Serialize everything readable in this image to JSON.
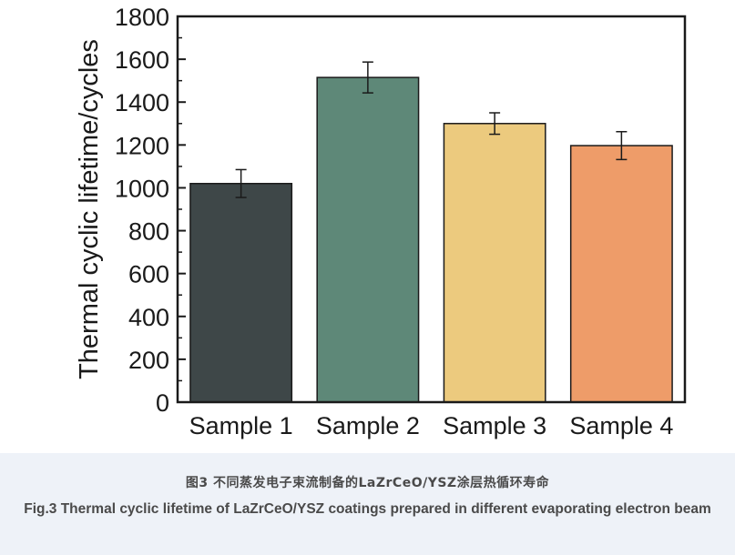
{
  "chart_data": {
    "type": "bar",
    "categories": [
      "Sample 1",
      "Sample 2",
      "Sample 3",
      "Sample 4"
    ],
    "values": [
      1020,
      1515,
      1300,
      1197
    ],
    "errors": [
      65,
      72,
      50,
      65
    ],
    "colors": [
      "#3e4748",
      "#5e8878",
      "#ecca7e",
      "#ee9c69"
    ],
    "ylabel": "Thermal cyclic lifetime/cycles",
    "ylim": [
      0,
      1800
    ],
    "yticks": [
      0,
      200,
      400,
      600,
      800,
      1000,
      1200,
      1400,
      1600,
      1800
    ],
    "grid": false
  },
  "caption": {
    "cn": "图3 不同蒸发电子束流制备的LaZrCeO/YSZ涂层热循环寿命",
    "en": "Fig.3 Thermal cyclic lifetime of LaZrCeO/YSZ coatings prepared in different evaporating electron beam"
  }
}
